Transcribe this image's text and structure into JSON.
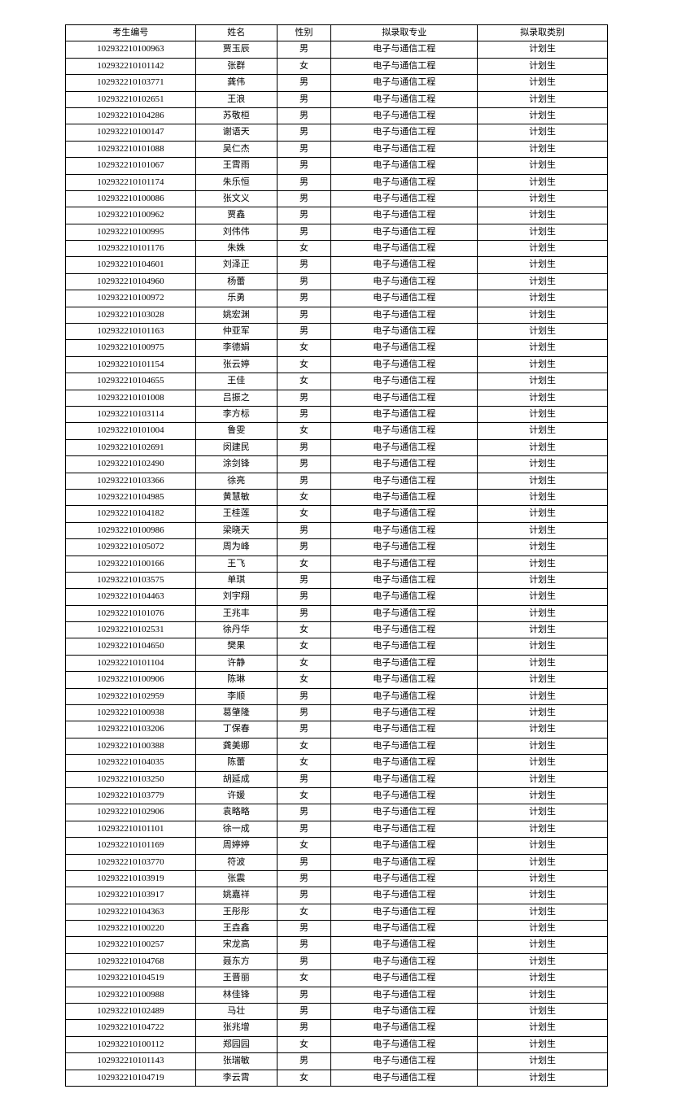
{
  "table": {
    "columns": [
      "考生编号",
      "姓名",
      "性别",
      "拟录取专业",
      "拟录取类别"
    ],
    "column_widths": [
      "24%",
      "15%",
      "10%",
      "27%",
      "24%"
    ],
    "border_color": "#000000",
    "background_color": "#ffffff",
    "font_size": 11,
    "rows": [
      [
        "102932210100963",
        "贾玉辰",
        "男",
        "电子与通信工程",
        "计划生"
      ],
      [
        "102932210101142",
        "张群",
        "女",
        "电子与通信工程",
        "计划生"
      ],
      [
        "102932210103771",
        "龚伟",
        "男",
        "电子与通信工程",
        "计划生"
      ],
      [
        "102932210102651",
        "王浪",
        "男",
        "电子与通信工程",
        "计划生"
      ],
      [
        "102932210104286",
        "苏敬桓",
        "男",
        "电子与通信工程",
        "计划生"
      ],
      [
        "102932210100147",
        "谢语天",
        "男",
        "电子与通信工程",
        "计划生"
      ],
      [
        "102932210101088",
        "吴仁杰",
        "男",
        "电子与通信工程",
        "计划生"
      ],
      [
        "102932210101067",
        "王霄雨",
        "男",
        "电子与通信工程",
        "计划生"
      ],
      [
        "102932210101174",
        "朱乐恒",
        "男",
        "电子与通信工程",
        "计划生"
      ],
      [
        "102932210100086",
        "张文义",
        "男",
        "电子与通信工程",
        "计划生"
      ],
      [
        "102932210100962",
        "贾鑫",
        "男",
        "电子与通信工程",
        "计划生"
      ],
      [
        "102932210100995",
        "刘伟伟",
        "男",
        "电子与通信工程",
        "计划生"
      ],
      [
        "102932210101176",
        "朱姝",
        "女",
        "电子与通信工程",
        "计划生"
      ],
      [
        "102932210104601",
        "刘泽正",
        "男",
        "电子与通信工程",
        "计划生"
      ],
      [
        "102932210104960",
        "杨蕾",
        "男",
        "电子与通信工程",
        "计划生"
      ],
      [
        "102932210100972",
        "乐勇",
        "男",
        "电子与通信工程",
        "计划生"
      ],
      [
        "102932210103028",
        "姚宏渊",
        "男",
        "电子与通信工程",
        "计划生"
      ],
      [
        "102932210101163",
        "仲亚军",
        "男",
        "电子与通信工程",
        "计划生"
      ],
      [
        "102932210100975",
        "李德娟",
        "女",
        "电子与通信工程",
        "计划生"
      ],
      [
        "102932210101154",
        "张云婷",
        "女",
        "电子与通信工程",
        "计划生"
      ],
      [
        "102932210104655",
        "王佳",
        "女",
        "电子与通信工程",
        "计划生"
      ],
      [
        "102932210101008",
        "吕振之",
        "男",
        "电子与通信工程",
        "计划生"
      ],
      [
        "102932210103114",
        "李方标",
        "男",
        "电子与通信工程",
        "计划生"
      ],
      [
        "102932210101004",
        "鲁雯",
        "女",
        "电子与通信工程",
        "计划生"
      ],
      [
        "102932210102691",
        "闵建民",
        "男",
        "电子与通信工程",
        "计划生"
      ],
      [
        "102932210102490",
        "涂剑锋",
        "男",
        "电子与通信工程",
        "计划生"
      ],
      [
        "102932210103366",
        "徐亮",
        "男",
        "电子与通信工程",
        "计划生"
      ],
      [
        "102932210104985",
        "黄慧敏",
        "女",
        "电子与通信工程",
        "计划生"
      ],
      [
        "102932210104182",
        "王桂莲",
        "女",
        "电子与通信工程",
        "计划生"
      ],
      [
        "102932210100986",
        "梁晓天",
        "男",
        "电子与通信工程",
        "计划生"
      ],
      [
        "102932210105072",
        "周为峰",
        "男",
        "电子与通信工程",
        "计划生"
      ],
      [
        "102932210100166",
        "王飞",
        "女",
        "电子与通信工程",
        "计划生"
      ],
      [
        "102932210103575",
        "单琪",
        "男",
        "电子与通信工程",
        "计划生"
      ],
      [
        "102932210104463",
        "刘宇翔",
        "男",
        "电子与通信工程",
        "计划生"
      ],
      [
        "102932210101076",
        "王兆丰",
        "男",
        "电子与通信工程",
        "计划生"
      ],
      [
        "102932210102531",
        "徐丹华",
        "女",
        "电子与通信工程",
        "计划生"
      ],
      [
        "102932210104650",
        "樊果",
        "女",
        "电子与通信工程",
        "计划生"
      ],
      [
        "102932210101104",
        "许静",
        "女",
        "电子与通信工程",
        "计划生"
      ],
      [
        "102932210100906",
        "陈琳",
        "女",
        "电子与通信工程",
        "计划生"
      ],
      [
        "102932210102959",
        "李顺",
        "男",
        "电子与通信工程",
        "计划生"
      ],
      [
        "102932210100938",
        "葛肇隆",
        "男",
        "电子与通信工程",
        "计划生"
      ],
      [
        "102932210103206",
        "丁保春",
        "男",
        "电子与通信工程",
        "计划生"
      ],
      [
        "102932210100388",
        "龚美娜",
        "女",
        "电子与通信工程",
        "计划生"
      ],
      [
        "102932210104035",
        "陈蕾",
        "女",
        "电子与通信工程",
        "计划生"
      ],
      [
        "102932210103250",
        "胡延成",
        "男",
        "电子与通信工程",
        "计划生"
      ],
      [
        "102932210103779",
        "许媛",
        "女",
        "电子与通信工程",
        "计划生"
      ],
      [
        "102932210102906",
        "袁略略",
        "男",
        "电子与通信工程",
        "计划生"
      ],
      [
        "102932210101101",
        "徐一成",
        "男",
        "电子与通信工程",
        "计划生"
      ],
      [
        "102932210101169",
        "周婷婷",
        "女",
        "电子与通信工程",
        "计划生"
      ],
      [
        "102932210103770",
        "符波",
        "男",
        "电子与通信工程",
        "计划生"
      ],
      [
        "102932210103919",
        "张震",
        "男",
        "电子与通信工程",
        "计划生"
      ],
      [
        "102932210103917",
        "姚嘉祥",
        "男",
        "电子与通信工程",
        "计划生"
      ],
      [
        "102932210104363",
        "王彤彤",
        "女",
        "电子与通信工程",
        "计划生"
      ],
      [
        "102932210100220",
        "王垚鑫",
        "男",
        "电子与通信工程",
        "计划生"
      ],
      [
        "102932210100257",
        "宋龙高",
        "男",
        "电子与通信工程",
        "计划生"
      ],
      [
        "102932210104768",
        "聂东方",
        "男",
        "电子与通信工程",
        "计划生"
      ],
      [
        "102932210104519",
        "王晋丽",
        "女",
        "电子与通信工程",
        "计划生"
      ],
      [
        "102932210100988",
        "林佳锋",
        "男",
        "电子与通信工程",
        "计划生"
      ],
      [
        "102932210102489",
        "马壮",
        "男",
        "电子与通信工程",
        "计划生"
      ],
      [
        "102932210104722",
        "张兆增",
        "男",
        "电子与通信工程",
        "计划生"
      ],
      [
        "102932210100112",
        "郑园园",
        "女",
        "电子与通信工程",
        "计划生"
      ],
      [
        "102932210101143",
        "张瑞敏",
        "男",
        "电子与通信工程",
        "计划生"
      ],
      [
        "102932210104719",
        "李云霄",
        "女",
        "电子与通信工程",
        "计划生"
      ]
    ]
  }
}
